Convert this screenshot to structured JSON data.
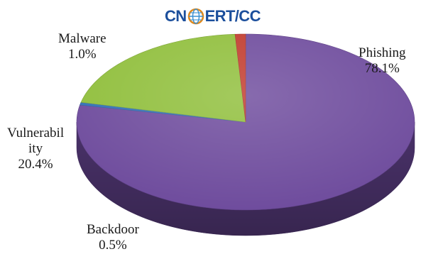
{
  "logo": {
    "left": "CN",
    "right": "ERT/CC"
  },
  "chart_data": {
    "type": "pie",
    "title": "",
    "three_d": true,
    "start_angle_deg": 90,
    "direction": "clockwise",
    "legend": "none",
    "slices": [
      {
        "name": "Phishing",
        "value": 78.1,
        "label": "78.1%",
        "color": "#6d4a9c"
      },
      {
        "name": "Backdoor",
        "value": 0.5,
        "label": "0.5%",
        "color": "#2f6fb5"
      },
      {
        "name": "Vulnerability",
        "value": 20.4,
        "label": "20.4%",
        "color": "#8fbe3a"
      },
      {
        "name": "Malware",
        "value": 1.0,
        "label": "1.0%",
        "color": "#c0392b"
      }
    ],
    "labels": {
      "phishing": {
        "line1": "Phishing",
        "line2": "78.1%"
      },
      "malware": {
        "line1": "Malware",
        "line2": "1.0%"
      },
      "vulnerability": {
        "line1": "Vulnerabil",
        "line2": "ity",
        "line3": "20.4%"
      },
      "backdoor": {
        "line1": "Backdoor",
        "line2": "0.5%"
      }
    }
  }
}
